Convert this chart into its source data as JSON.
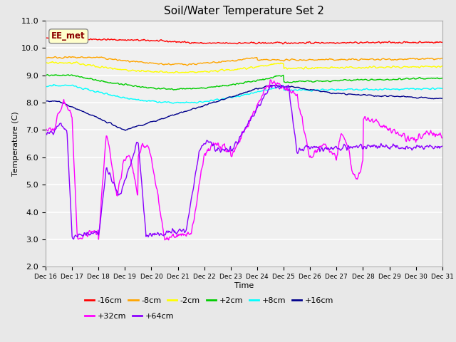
{
  "title": "Soil/Water Temperature Set 2",
  "xlabel": "Time",
  "ylabel": "Temperature (C)",
  "ylim": [
    2.0,
    11.0
  ],
  "yticks": [
    2.0,
    3.0,
    4.0,
    5.0,
    6.0,
    7.0,
    8.0,
    9.0,
    10.0,
    11.0
  ],
  "annotation": "EE_met",
  "annotation_color": "#8B0000",
  "annotation_bg": "#FFFFCC",
  "legend_row1": [
    "-16cm",
    "-8cm",
    "-2cm",
    "+2cm",
    "+8cm",
    "+16cm"
  ],
  "legend_row2": [
    "+32cm",
    "+64cm"
  ],
  "legend_colors": [
    "#FF0000",
    "#FFA500",
    "#FFFF00",
    "#00CC00",
    "#00FFFF",
    "#00008B",
    "#FF00FF",
    "#8B00FF"
  ],
  "legend_entries": [
    "-16cm",
    "-8cm",
    "-2cm",
    "+2cm",
    "+8cm",
    "+16cm",
    "+32cm",
    "+64cm"
  ],
  "bg_color": "#E8E8E8",
  "plot_bg": "#F0F0F0",
  "grid_color": "#FFFFFF",
  "figsize": [
    6.4,
    4.8
  ],
  "dpi": 100,
  "tick_labels": [
    "Dec 16",
    "Dec 17",
    "Dec 18",
    "Dec 19",
    "Dec 20",
    "Dec 21",
    "Dec 22",
    "Dec 23",
    "Dec 24",
    "Dec 25",
    "Dec 26",
    "Dec 27",
    "Dec 28",
    "Dec 29",
    "Dec 30",
    "Dec 31"
  ]
}
